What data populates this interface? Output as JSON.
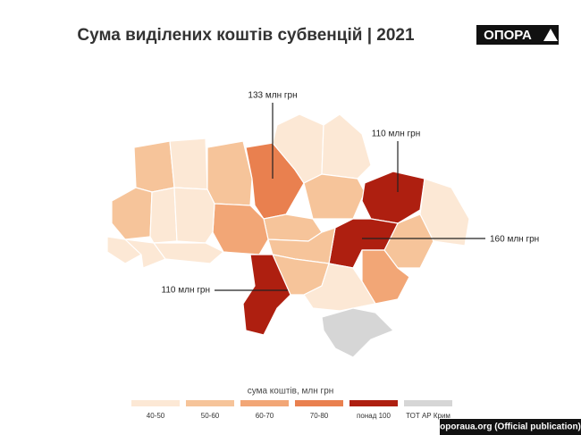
{
  "title": "Сума виділених коштів субвенцій | 2021",
  "logo": "ОПОРА",
  "annotations": [
    "133 млн грн",
    "110 млн грн",
    "160 млн грн",
    "110 млн грн"
  ],
  "legend": {
    "title": "сума коштів, млн грн",
    "items": [
      {
        "label": "40-50",
        "color": "#fce8d5"
      },
      {
        "label": "50-60",
        "color": "#f6c49a"
      },
      {
        "label": "60-70",
        "color": "#f2a676"
      },
      {
        "label": "70-80",
        "color": "#e9804f"
      },
      {
        "label": "понад 100",
        "color": "#ae1f10"
      },
      {
        "label": "ТОТ АР Крим",
        "color": "#d6d6d6"
      }
    ]
  },
  "source": "oporaua.org (Official publication)"
}
